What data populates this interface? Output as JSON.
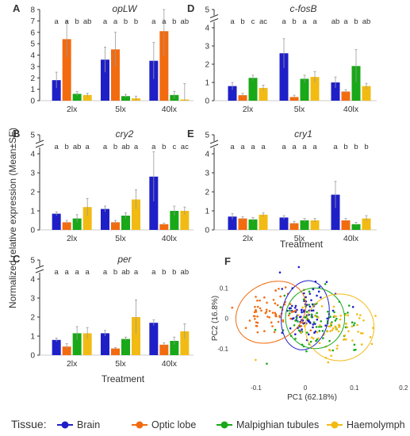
{
  "figure": {
    "y_axis_title": "Normalized relative expression (Mean±SE)",
    "x_axis_title": "Treatment",
    "legend_title": "Tissue:",
    "legend": [
      {
        "name": "Brain",
        "color": "#1f1fc8"
      },
      {
        "name": "Optic lobe",
        "color": "#f26b0f"
      },
      {
        "name": "Malpighian tubules",
        "color": "#18a818"
      },
      {
        "name": "Haemolymph",
        "color": "#f2bb14"
      }
    ]
  },
  "chart_data": [
    {
      "panel": "A",
      "gene": "opLW",
      "type": "bar",
      "categories": [
        "2lx",
        "5lx",
        "40lx"
      ],
      "ylim": [
        0,
        8
      ],
      "yticks": [
        0,
        1,
        2,
        3,
        4,
        5,
        6,
        7,
        8
      ],
      "series": [
        {
          "name": "Brain",
          "values": [
            1.8,
            3.6,
            3.5
          ],
          "errors": [
            0.7,
            1.1,
            1.6
          ]
        },
        {
          "name": "Optic lobe",
          "values": [
            5.4,
            4.5,
            6.1
          ],
          "errors": [
            1.6,
            1.5,
            2.2
          ]
        },
        {
          "name": "Malpighian tubules",
          "values": [
            0.6,
            0.4,
            0.5
          ],
          "errors": [
            0.2,
            0.15,
            0.3
          ]
        },
        {
          "name": "Haemolymph",
          "values": [
            0.5,
            0.2,
            0.1
          ],
          "errors": [
            0.15,
            0.2,
            1.4
          ]
        }
      ],
      "significance": [
        [
          "a",
          "a",
          "b",
          "ab"
        ],
        [
          "a",
          "a",
          "b",
          "b"
        ],
        [
          "a",
          "a",
          "b",
          "ab"
        ]
      ]
    },
    {
      "panel": "B",
      "gene": "cry2",
      "type": "bar",
      "categories": [
        "2lx",
        "5lx",
        "40lx"
      ],
      "ylim": [
        0,
        5
      ],
      "yticks": [
        0,
        1,
        2,
        3,
        4,
        5
      ],
      "series": [
        {
          "name": "Brain",
          "values": [
            0.85,
            1.1,
            2.8
          ],
          "errors": [
            0.1,
            0.15,
            1.3
          ]
        },
        {
          "name": "Optic lobe",
          "values": [
            0.4,
            0.4,
            0.3
          ],
          "errors": [
            0.1,
            0.1,
            0.05
          ]
        },
        {
          "name": "Malpighian tubules",
          "values": [
            0.6,
            0.75,
            1.0
          ],
          "errors": [
            0.2,
            0.15,
            0.25
          ]
        },
        {
          "name": "Haemolymph",
          "values": [
            1.2,
            1.6,
            1.0
          ],
          "errors": [
            0.45,
            0.5,
            0.2
          ]
        }
      ],
      "significance": [
        [
          "a",
          "b",
          "ab",
          "a"
        ],
        [
          "a",
          "b",
          "ab",
          "a"
        ],
        [
          "a",
          "b",
          "c",
          "ac"
        ]
      ]
    },
    {
      "panel": "C",
      "gene": "per",
      "type": "bar",
      "categories": [
        "2lx",
        "5lx",
        "40lx"
      ],
      "ylim": [
        0,
        5
      ],
      "yticks": [
        0,
        1,
        2,
        3,
        4,
        5
      ],
      "series": [
        {
          "name": "Brain",
          "values": [
            0.8,
            1.15,
            1.7
          ],
          "errors": [
            0.1,
            0.15,
            0.15
          ]
        },
        {
          "name": "Optic lobe",
          "values": [
            0.45,
            0.35,
            0.55
          ],
          "errors": [
            0.15,
            0.05,
            0.1
          ]
        },
        {
          "name": "Malpighian tubules",
          "values": [
            1.15,
            0.85,
            0.75
          ],
          "errors": [
            0.35,
            0.1,
            0.2
          ]
        },
        {
          "name": "Haemolymph",
          "values": [
            1.15,
            2.0,
            1.25
          ],
          "errors": [
            0.3,
            0.9,
            0.4
          ]
        }
      ],
      "significance": [
        [
          "a",
          "a",
          "a",
          "a"
        ],
        [
          "a",
          "b",
          "ab",
          "a"
        ],
        [
          "a",
          "b",
          "b",
          "ab"
        ]
      ]
    },
    {
      "panel": "D",
      "gene": "c-fosB",
      "type": "bar",
      "categories": [
        "2lx",
        "5lx",
        "40lx"
      ],
      "ylim": [
        0,
        5
      ],
      "yticks": [
        0,
        1,
        2,
        3,
        4,
        5
      ],
      "series": [
        {
          "name": "Brain",
          "values": [
            0.8,
            2.6,
            1.0
          ],
          "errors": [
            0.2,
            0.8,
            0.3
          ]
        },
        {
          "name": "Optic lobe",
          "values": [
            0.3,
            0.2,
            0.5
          ],
          "errors": [
            0.1,
            0.1,
            0.1
          ]
        },
        {
          "name": "Malpighian tubules",
          "values": [
            1.25,
            1.2,
            1.9
          ],
          "errors": [
            0.15,
            0.2,
            0.9
          ]
        },
        {
          "name": "Haemolymph",
          "values": [
            0.7,
            1.3,
            0.8
          ],
          "errors": [
            0.15,
            0.3,
            0.15
          ]
        }
      ],
      "significance": [
        [
          "a",
          "b",
          "c",
          "ac"
        ],
        [
          "a",
          "b",
          "a",
          "a"
        ],
        [
          "ab",
          "a",
          "b",
          "ab"
        ]
      ]
    },
    {
      "panel": "E",
      "gene": "cry1",
      "type": "bar",
      "categories": [
        "2lx",
        "5lx",
        "40lx"
      ],
      "ylim": [
        0,
        5
      ],
      "yticks": [
        0,
        1,
        2,
        3,
        4,
        5
      ],
      "series": [
        {
          "name": "Brain",
          "values": [
            0.7,
            0.65,
            1.85
          ],
          "errors": [
            0.15,
            0.1,
            0.7
          ]
        },
        {
          "name": "Optic lobe",
          "values": [
            0.6,
            0.35,
            0.5
          ],
          "errors": [
            0.1,
            0.1,
            0.1
          ]
        },
        {
          "name": "Malpighian tubules",
          "values": [
            0.55,
            0.5,
            0.3
          ],
          "errors": [
            0.1,
            0.1,
            0.1
          ]
        },
        {
          "name": "Haemolymph",
          "values": [
            0.8,
            0.5,
            0.6
          ],
          "errors": [
            0.1,
            0.1,
            0.15
          ]
        }
      ],
      "significance": [
        [
          "a",
          "a",
          "a",
          "a"
        ],
        [
          "a",
          "a",
          "a",
          "a"
        ],
        [
          "a",
          "b",
          "b",
          "b"
        ]
      ]
    },
    {
      "panel": "F",
      "type": "scatter",
      "xlabel": "PC1 (62.18%)",
      "ylabel": "PC2 (16.8%)",
      "xlim": [
        -0.15,
        0.21
      ],
      "ylim": [
        -0.2,
        0.2
      ],
      "xticks": [
        -0.1,
        0.0,
        0.1,
        0.2
      ],
      "yticks": [
        -0.1,
        0.0,
        0.1
      ],
      "tick_labels_x": [
        "-0.1",
        "0",
        "0.1",
        "0.2"
      ],
      "tick_labels_y": [
        "-0.1",
        "0",
        "0.1"
      ],
      "groups": [
        {
          "name": "Brain",
          "centroid": [
            0.0,
            0.02
          ],
          "spread": [
            0.025,
            0.045
          ],
          "n": 90,
          "ellipse": {
            "center": [
              0.0,
              0.01
            ],
            "rx": 0.048,
            "ry": 0.115,
            "angle_deg": 10
          }
        },
        {
          "name": "Optic lobe",
          "centroid": [
            -0.07,
            0.02
          ],
          "spread": [
            0.035,
            0.04
          ],
          "n": 70,
          "ellipse": {
            "center": [
              -0.07,
              0.02
            ],
            "rx": 0.075,
            "ry": 0.095,
            "angle_deg": -30
          }
        },
        {
          "name": "Malpighian tubules",
          "centroid": [
            0.03,
            -0.01
          ],
          "spread": [
            0.04,
            0.04
          ],
          "n": 80,
          "ellipse": {
            "center": [
              0.02,
              0.0
            ],
            "rx": 0.06,
            "ry": 0.1,
            "angle_deg": -10
          }
        },
        {
          "name": "Haemolymph",
          "centroid": [
            0.07,
            -0.04
          ],
          "spread": [
            0.04,
            0.04
          ],
          "n": 70,
          "ellipse": {
            "center": [
              0.07,
              -0.03
            ],
            "rx": 0.07,
            "ry": 0.11,
            "angle_deg": -5
          }
        }
      ]
    }
  ]
}
